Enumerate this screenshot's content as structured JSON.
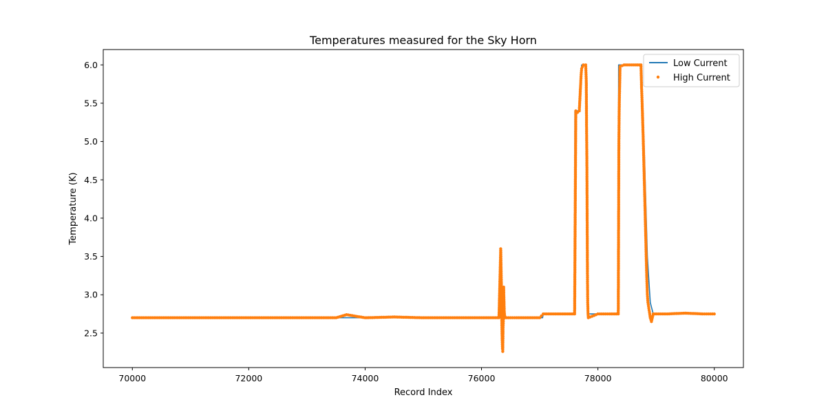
{
  "chart_data": {
    "type": "line",
    "title": "Temperatures measured for the Sky Horn",
    "xlabel": "Record Index",
    "ylabel": "Temperature (K)",
    "xlim": [
      69500,
      80500
    ],
    "ylim": [
      2.05,
      6.2
    ],
    "xticks": [
      70000,
      72000,
      74000,
      76000,
      78000,
      80000
    ],
    "yticks": [
      2.5,
      3.0,
      3.5,
      4.0,
      4.5,
      5.0,
      5.5,
      6.0
    ],
    "legend_position": "upper right",
    "grid": false,
    "series": [
      {
        "name": "Low Current",
        "style": "line",
        "color": "#1f77b4",
        "points": [
          [
            70000,
            2.7
          ],
          [
            76330,
            2.7
          ],
          [
            76335,
            3.0
          ],
          [
            76340,
            2.7
          ],
          [
            77050,
            2.7
          ],
          [
            77060,
            2.75
          ],
          [
            77600,
            2.75
          ],
          [
            77605,
            5.4
          ],
          [
            77680,
            5.4
          ],
          [
            77700,
            5.85
          ],
          [
            77720,
            6.0
          ],
          [
            77800,
            6.0
          ],
          [
            77820,
            2.75
          ],
          [
            78350,
            2.75
          ],
          [
            78355,
            6.0
          ],
          [
            78750,
            6.0
          ],
          [
            78760,
            5.7
          ],
          [
            78800,
            4.8
          ],
          [
            78850,
            3.5
          ],
          [
            78900,
            2.9
          ],
          [
            78950,
            2.75
          ],
          [
            80000,
            2.75
          ]
        ]
      },
      {
        "name": "High Current",
        "style": "scatter",
        "color": "#ff7f0e",
        "points": [
          [
            70000,
            2.7
          ],
          [
            70500,
            2.7
          ],
          [
            71000,
            2.7
          ],
          [
            71500,
            2.7
          ],
          [
            72000,
            2.7
          ],
          [
            72500,
            2.7
          ],
          [
            73000,
            2.7
          ],
          [
            73500,
            2.7
          ],
          [
            73680,
            2.74
          ],
          [
            74000,
            2.7
          ],
          [
            74500,
            2.71
          ],
          [
            75000,
            2.7
          ],
          [
            75500,
            2.7
          ],
          [
            76000,
            2.7
          ],
          [
            76300,
            2.7
          ],
          [
            76330,
            3.6
          ],
          [
            76335,
            3.4
          ],
          [
            76340,
            3.2
          ],
          [
            76345,
            2.9
          ],
          [
            76350,
            2.6
          ],
          [
            76355,
            2.4
          ],
          [
            76360,
            2.3
          ],
          [
            76365,
            2.26
          ],
          [
            76370,
            2.55
          ],
          [
            76375,
            2.68
          ],
          [
            76380,
            3.1
          ],
          [
            76390,
            2.8
          ],
          [
            76400,
            2.7
          ],
          [
            76600,
            2.7
          ],
          [
            77000,
            2.7
          ],
          [
            77060,
            2.75
          ],
          [
            77300,
            2.75
          ],
          [
            77600,
            2.75
          ],
          [
            77620,
            5.4
          ],
          [
            77650,
            5.38
          ],
          [
            77680,
            5.4
          ],
          [
            77700,
            5.7
          ],
          [
            77710,
            5.85
          ],
          [
            77720,
            5.95
          ],
          [
            77750,
            6.0
          ],
          [
            77790,
            6.0
          ],
          [
            77800,
            5.8
          ],
          [
            77805,
            5.2
          ],
          [
            77810,
            4.8
          ],
          [
            77812,
            4.5
          ],
          [
            77814,
            4.2
          ],
          [
            77816,
            3.9
          ],
          [
            77818,
            3.6
          ],
          [
            77820,
            3.3
          ],
          [
            77822,
            3.1
          ],
          [
            77825,
            2.9
          ],
          [
            77830,
            2.75
          ],
          [
            77835,
            2.7
          ],
          [
            78000,
            2.75
          ],
          [
            78200,
            2.75
          ],
          [
            78350,
            2.75
          ],
          [
            78360,
            4.95
          ],
          [
            78365,
            5.37
          ],
          [
            78370,
            5.6
          ],
          [
            78375,
            5.75
          ],
          [
            78380,
            5.98
          ],
          [
            78450,
            6.0
          ],
          [
            78550,
            6.0
          ],
          [
            78650,
            6.0
          ],
          [
            78740,
            6.0
          ],
          [
            78750,
            5.7
          ],
          [
            78760,
            5.5
          ],
          [
            78770,
            5.25
          ],
          [
            78780,
            5.0
          ],
          [
            78790,
            4.7
          ],
          [
            78800,
            4.4
          ],
          [
            78810,
            4.1
          ],
          [
            78820,
            3.8
          ],
          [
            78830,
            3.5
          ],
          [
            78840,
            3.2
          ],
          [
            78850,
            3.0
          ],
          [
            78860,
            2.9
          ],
          [
            78880,
            2.8
          ],
          [
            78900,
            2.7
          ],
          [
            78920,
            2.65
          ],
          [
            78950,
            2.75
          ],
          [
            79200,
            2.75
          ],
          [
            79500,
            2.76
          ],
          [
            79800,
            2.75
          ],
          [
            80000,
            2.75
          ]
        ]
      }
    ]
  }
}
